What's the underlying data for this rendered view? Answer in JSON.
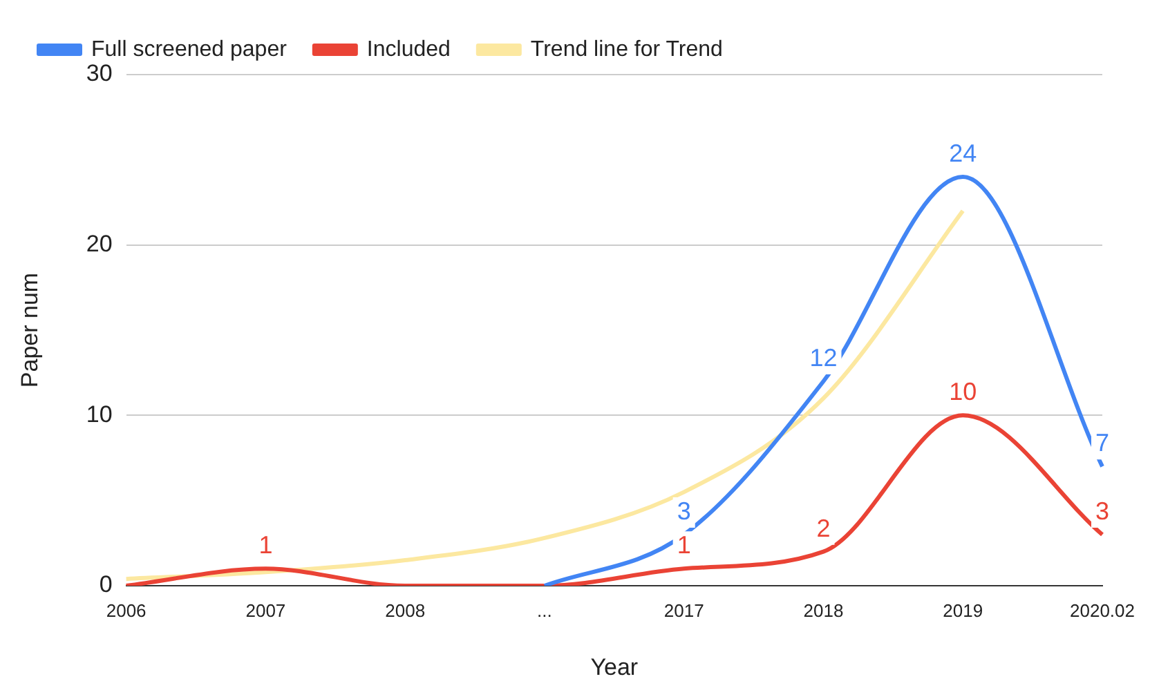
{
  "chart_data": {
    "type": "line",
    "xlabel": "Year",
    "ylabel": "Paper num",
    "categories": [
      "2006",
      "2007",
      "2008",
      "...",
      "2017",
      "2018",
      "2019",
      "2020.02"
    ],
    "series": [
      {
        "name": "Full screened paper",
        "color": "#4285f4",
        "values": [
          null,
          null,
          null,
          0,
          3,
          12,
          24,
          7
        ],
        "value_labels": [
          null,
          null,
          null,
          null,
          "3",
          "12",
          "24",
          "7"
        ]
      },
      {
        "name": "Included",
        "color": "#ea4335",
        "values": [
          0,
          1,
          0,
          0,
          1,
          2,
          10,
          3
        ],
        "value_labels": [
          null,
          "1",
          null,
          null,
          "1",
          "2",
          "10",
          "3"
        ]
      },
      {
        "name": "Trend line for Trend",
        "color": "#fce8a0",
        "values": [
          0.4,
          0.8,
          1.5,
          2.8,
          5.5,
          11,
          22,
          null
        ]
      }
    ],
    "ylim": [
      0,
      30
    ],
    "yticks": [
      0,
      10,
      20,
      30
    ],
    "grid": "y",
    "legend": "top",
    "marker": "none"
  }
}
